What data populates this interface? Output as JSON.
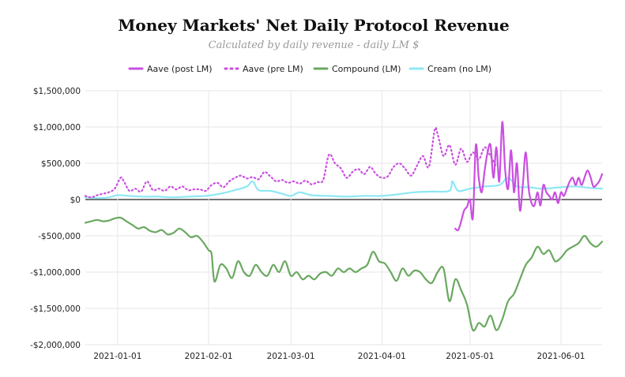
{
  "chart_data": {
    "type": "line",
    "title": "Money Markets' Net Daily Protocol Revenue",
    "subtitle": "Calculated by daily revenue - daily LM $",
    "xlabel": "",
    "ylabel": "",
    "x_range": [
      "2020-12-21",
      "2021-06-15"
    ],
    "ylim": [
      -2000000,
      1500000
    ],
    "grid": true,
    "legend_position": "top-center",
    "x_ticks": [
      {
        "date": "2021-01-01",
        "label": "2021-01-01"
      },
      {
        "date": "2021-02-01",
        "label": "2021-02-01"
      },
      {
        "date": "2021-03-01",
        "label": "2021-03-01"
      },
      {
        "date": "2021-04-01",
        "label": "2021-04-01"
      },
      {
        "date": "2021-05-01",
        "label": "2021-05-01"
      },
      {
        "date": "2021-06-01",
        "label": "2021-06-01"
      }
    ],
    "y_ticks": [
      {
        "value": 1500000,
        "label": "$1,500,000"
      },
      {
        "value": 1000000,
        "label": "$1,000,000"
      },
      {
        "value": 500000,
        "label": "$500,000"
      },
      {
        "value": 0,
        "label": "$0"
      },
      {
        "value": -500000,
        "label": "-$500,000"
      },
      {
        "value": -1000000,
        "label": "-$1,000,000"
      },
      {
        "value": -1500000,
        "label": "-$1,500,000"
      },
      {
        "value": -2000000,
        "label": "-$2,000,000"
      }
    ],
    "series": [
      {
        "name": "Aave (post LM)",
        "color": "#c94fe0",
        "style": "solid",
        "points": [
          [
            "2021-04-26",
            -400000
          ],
          [
            "2021-04-27",
            -420000
          ],
          [
            "2021-04-28",
            -300000
          ],
          [
            "2021-04-29",
            -150000
          ],
          [
            "2021-04-30",
            -100000
          ],
          [
            "2021-05-01",
            0
          ],
          [
            "2021-05-02",
            -250000
          ],
          [
            "2021-05-03",
            750000
          ],
          [
            "2021-05-04",
            300000
          ],
          [
            "2021-05-05",
            100000
          ],
          [
            "2021-05-06",
            400000
          ],
          [
            "2021-05-07",
            650000
          ],
          [
            "2021-05-08",
            750000
          ],
          [
            "2021-05-09",
            300000
          ],
          [
            "2021-05-10",
            720000
          ],
          [
            "2021-05-11",
            250000
          ],
          [
            "2021-05-12",
            1070000
          ],
          [
            "2021-05-13",
            400000
          ],
          [
            "2021-05-14",
            150000
          ],
          [
            "2021-05-15",
            680000
          ],
          [
            "2021-05-16",
            100000
          ],
          [
            "2021-05-17",
            500000
          ],
          [
            "2021-05-18",
            -150000
          ],
          [
            "2021-05-19",
            200000
          ],
          [
            "2021-05-20",
            650000
          ],
          [
            "2021-05-21",
            150000
          ],
          [
            "2021-05-22",
            -50000
          ],
          [
            "2021-05-23",
            -80000
          ],
          [
            "2021-05-24",
            100000
          ],
          [
            "2021-05-25",
            -80000
          ],
          [
            "2021-05-26",
            200000
          ],
          [
            "2021-05-27",
            100000
          ],
          [
            "2021-05-28",
            50000
          ],
          [
            "2021-05-29",
            0
          ],
          [
            "2021-05-30",
            100000
          ],
          [
            "2021-05-31",
            -50000
          ],
          [
            "2021-06-01",
            100000
          ],
          [
            "2021-06-02",
            50000
          ],
          [
            "2021-06-03",
            150000
          ],
          [
            "2021-06-04",
            250000
          ],
          [
            "2021-06-05",
            300000
          ],
          [
            "2021-06-06",
            200000
          ],
          [
            "2021-06-07",
            300000
          ],
          [
            "2021-06-08",
            200000
          ],
          [
            "2021-06-09",
            300000
          ],
          [
            "2021-06-10",
            400000
          ],
          [
            "2021-06-11",
            320000
          ],
          [
            "2021-06-12",
            180000
          ],
          [
            "2021-06-13",
            200000
          ],
          [
            "2021-06-14",
            250000
          ],
          [
            "2021-06-15",
            350000
          ]
        ]
      },
      {
        "name": "Aave (pre LM)",
        "color": "#c94fe0",
        "style": "dotted",
        "points": [
          [
            "2020-12-21",
            50000
          ],
          [
            "2020-12-23",
            30000
          ],
          [
            "2020-12-25",
            60000
          ],
          [
            "2020-12-27",
            80000
          ],
          [
            "2020-12-29",
            100000
          ],
          [
            "2020-12-31",
            150000
          ],
          [
            "2021-01-02",
            300000
          ],
          [
            "2021-01-03",
            260000
          ],
          [
            "2021-01-05",
            120000
          ],
          [
            "2021-01-07",
            150000
          ],
          [
            "2021-01-09",
            110000
          ],
          [
            "2021-01-11",
            250000
          ],
          [
            "2021-01-13",
            130000
          ],
          [
            "2021-01-15",
            150000
          ],
          [
            "2021-01-17",
            120000
          ],
          [
            "2021-01-19",
            180000
          ],
          [
            "2021-01-21",
            140000
          ],
          [
            "2021-01-23",
            180000
          ],
          [
            "2021-01-25",
            130000
          ],
          [
            "2021-01-27",
            140000
          ],
          [
            "2021-01-29",
            140000
          ],
          [
            "2021-01-31",
            120000
          ],
          [
            "2021-02-02",
            200000
          ],
          [
            "2021-02-04",
            230000
          ],
          [
            "2021-02-06",
            170000
          ],
          [
            "2021-02-08",
            250000
          ],
          [
            "2021-02-10",
            300000
          ],
          [
            "2021-02-12",
            330000
          ],
          [
            "2021-02-14",
            290000
          ],
          [
            "2021-02-16",
            310000
          ],
          [
            "2021-02-18",
            280000
          ],
          [
            "2021-02-20",
            380000
          ],
          [
            "2021-02-22",
            320000
          ],
          [
            "2021-02-24",
            250000
          ],
          [
            "2021-02-26",
            270000
          ],
          [
            "2021-02-28",
            230000
          ],
          [
            "2021-03-02",
            250000
          ],
          [
            "2021-03-04",
            220000
          ],
          [
            "2021-03-06",
            260000
          ],
          [
            "2021-03-08",
            210000
          ],
          [
            "2021-03-10",
            240000
          ],
          [
            "2021-03-12",
            270000
          ],
          [
            "2021-03-14",
            620000
          ],
          [
            "2021-03-16",
            500000
          ],
          [
            "2021-03-18",
            430000
          ],
          [
            "2021-03-20",
            300000
          ],
          [
            "2021-03-22",
            380000
          ],
          [
            "2021-03-24",
            420000
          ],
          [
            "2021-03-26",
            350000
          ],
          [
            "2021-03-28",
            450000
          ],
          [
            "2021-03-30",
            350000
          ],
          [
            "2021-04-01",
            300000
          ],
          [
            "2021-04-03",
            320000
          ],
          [
            "2021-04-05",
            450000
          ],
          [
            "2021-04-07",
            500000
          ],
          [
            "2021-04-09",
            420000
          ],
          [
            "2021-04-11",
            330000
          ],
          [
            "2021-04-13",
            470000
          ],
          [
            "2021-04-15",
            600000
          ],
          [
            "2021-04-17",
            450000
          ],
          [
            "2021-04-19",
            960000
          ],
          [
            "2021-04-20",
            900000
          ],
          [
            "2021-04-22",
            600000
          ],
          [
            "2021-04-24",
            750000
          ],
          [
            "2021-04-26",
            480000
          ],
          [
            "2021-04-28",
            700000
          ],
          [
            "2021-04-30",
            520000
          ],
          [
            "2021-05-02",
            650000
          ],
          [
            "2021-05-04",
            550000
          ],
          [
            "2021-05-06",
            720000
          ],
          [
            "2021-05-08",
            600000
          ],
          [
            "2021-05-10",
            450000
          ]
        ]
      },
      {
        "name": "Compound (LM)",
        "color": "#6aa860",
        "style": "solid",
        "points": [
          [
            "2020-12-21",
            -320000
          ],
          [
            "2020-12-23",
            -300000
          ],
          [
            "2020-12-25",
            -280000
          ],
          [
            "2020-12-27",
            -300000
          ],
          [
            "2020-12-29",
            -290000
          ],
          [
            "2020-12-31",
            -260000
          ],
          [
            "2021-01-02",
            -250000
          ],
          [
            "2021-01-04",
            -300000
          ],
          [
            "2021-01-06",
            -350000
          ],
          [
            "2021-01-08",
            -400000
          ],
          [
            "2021-01-10",
            -380000
          ],
          [
            "2021-01-12",
            -430000
          ],
          [
            "2021-01-14",
            -450000
          ],
          [
            "2021-01-16",
            -420000
          ],
          [
            "2021-01-18",
            -480000
          ],
          [
            "2021-01-20",
            -460000
          ],
          [
            "2021-01-22",
            -400000
          ],
          [
            "2021-01-24",
            -450000
          ],
          [
            "2021-01-26",
            -520000
          ],
          [
            "2021-01-28",
            -500000
          ],
          [
            "2021-01-30",
            -580000
          ],
          [
            "2021-02-01",
            -700000
          ],
          [
            "2021-02-02",
            -750000
          ],
          [
            "2021-02-03",
            -1130000
          ],
          [
            "2021-02-05",
            -900000
          ],
          [
            "2021-02-07",
            -950000
          ],
          [
            "2021-02-09",
            -1080000
          ],
          [
            "2021-02-11",
            -850000
          ],
          [
            "2021-02-13",
            -1000000
          ],
          [
            "2021-02-15",
            -1050000
          ],
          [
            "2021-02-17",
            -900000
          ],
          [
            "2021-02-19",
            -1000000
          ],
          [
            "2021-02-21",
            -1050000
          ],
          [
            "2021-02-23",
            -900000
          ],
          [
            "2021-02-25",
            -1000000
          ],
          [
            "2021-02-27",
            -850000
          ],
          [
            "2021-03-01",
            -1050000
          ],
          [
            "2021-03-03",
            -1000000
          ],
          [
            "2021-03-05",
            -1100000
          ],
          [
            "2021-03-07",
            -1050000
          ],
          [
            "2021-03-09",
            -1100000
          ],
          [
            "2021-03-11",
            -1020000
          ],
          [
            "2021-03-13",
            -1000000
          ],
          [
            "2021-03-15",
            -1050000
          ],
          [
            "2021-03-17",
            -950000
          ],
          [
            "2021-03-19",
            -1000000
          ],
          [
            "2021-03-21",
            -950000
          ],
          [
            "2021-03-23",
            -1000000
          ],
          [
            "2021-03-25",
            -950000
          ],
          [
            "2021-03-27",
            -900000
          ],
          [
            "2021-03-29",
            -720000
          ],
          [
            "2021-03-31",
            -850000
          ],
          [
            "2021-04-02",
            -880000
          ],
          [
            "2021-04-04",
            -1000000
          ],
          [
            "2021-04-06",
            -1120000
          ],
          [
            "2021-04-08",
            -950000
          ],
          [
            "2021-04-10",
            -1050000
          ],
          [
            "2021-04-12",
            -980000
          ],
          [
            "2021-04-14",
            -1000000
          ],
          [
            "2021-04-16",
            -1100000
          ],
          [
            "2021-04-18",
            -1150000
          ],
          [
            "2021-04-20",
            -1000000
          ],
          [
            "2021-04-22",
            -950000
          ],
          [
            "2021-04-24",
            -1400000
          ],
          [
            "2021-04-26",
            -1100000
          ],
          [
            "2021-04-28",
            -1250000
          ],
          [
            "2021-04-30",
            -1450000
          ],
          [
            "2021-05-02",
            -1800000
          ],
          [
            "2021-05-04",
            -1700000
          ],
          [
            "2021-05-06",
            -1750000
          ],
          [
            "2021-05-08",
            -1600000
          ],
          [
            "2021-05-10",
            -1800000
          ],
          [
            "2021-05-12",
            -1650000
          ],
          [
            "2021-05-14",
            -1400000
          ],
          [
            "2021-05-16",
            -1300000
          ],
          [
            "2021-05-18",
            -1100000
          ],
          [
            "2021-05-20",
            -900000
          ],
          [
            "2021-05-22",
            -800000
          ],
          [
            "2021-05-24",
            -650000
          ],
          [
            "2021-05-26",
            -750000
          ],
          [
            "2021-05-28",
            -700000
          ],
          [
            "2021-05-30",
            -850000
          ],
          [
            "2021-06-01",
            -800000
          ],
          [
            "2021-06-03",
            -700000
          ],
          [
            "2021-06-05",
            -650000
          ],
          [
            "2021-06-07",
            -600000
          ],
          [
            "2021-06-09",
            -500000
          ],
          [
            "2021-06-11",
            -600000
          ],
          [
            "2021-06-13",
            -650000
          ],
          [
            "2021-06-15",
            -580000
          ]
        ]
      },
      {
        "name": "Cream (no LM)",
        "color": "#8de8f3",
        "style": "solid",
        "points": [
          [
            "2020-12-21",
            30000
          ],
          [
            "2020-12-25",
            20000
          ],
          [
            "2020-12-29",
            30000
          ],
          [
            "2021-01-01",
            60000
          ],
          [
            "2021-01-05",
            50000
          ],
          [
            "2021-01-10",
            40000
          ],
          [
            "2021-01-15",
            40000
          ],
          [
            "2021-01-20",
            30000
          ],
          [
            "2021-01-25",
            40000
          ],
          [
            "2021-01-31",
            50000
          ],
          [
            "2021-02-05",
            80000
          ],
          [
            "2021-02-10",
            130000
          ],
          [
            "2021-02-14",
            180000
          ],
          [
            "2021-02-16",
            250000
          ],
          [
            "2021-02-18",
            130000
          ],
          [
            "2021-02-22",
            120000
          ],
          [
            "2021-02-26",
            80000
          ],
          [
            "2021-03-01",
            50000
          ],
          [
            "2021-03-04",
            100000
          ],
          [
            "2021-03-08",
            60000
          ],
          [
            "2021-03-14",
            50000
          ],
          [
            "2021-03-20",
            40000
          ],
          [
            "2021-03-26",
            50000
          ],
          [
            "2021-04-01",
            50000
          ],
          [
            "2021-04-06",
            70000
          ],
          [
            "2021-04-12",
            100000
          ],
          [
            "2021-04-18",
            110000
          ],
          [
            "2021-04-24",
            120000
          ],
          [
            "2021-04-25",
            250000
          ],
          [
            "2021-04-27",
            120000
          ],
          [
            "2021-05-01",
            150000
          ],
          [
            "2021-05-06",
            180000
          ],
          [
            "2021-05-11",
            200000
          ],
          [
            "2021-05-14",
            300000
          ],
          [
            "2021-05-17",
            180000
          ],
          [
            "2021-05-21",
            170000
          ],
          [
            "2021-05-26",
            150000
          ],
          [
            "2021-06-01",
            170000
          ],
          [
            "2021-06-06",
            180000
          ],
          [
            "2021-06-11",
            160000
          ],
          [
            "2021-06-15",
            150000
          ]
        ]
      }
    ]
  }
}
